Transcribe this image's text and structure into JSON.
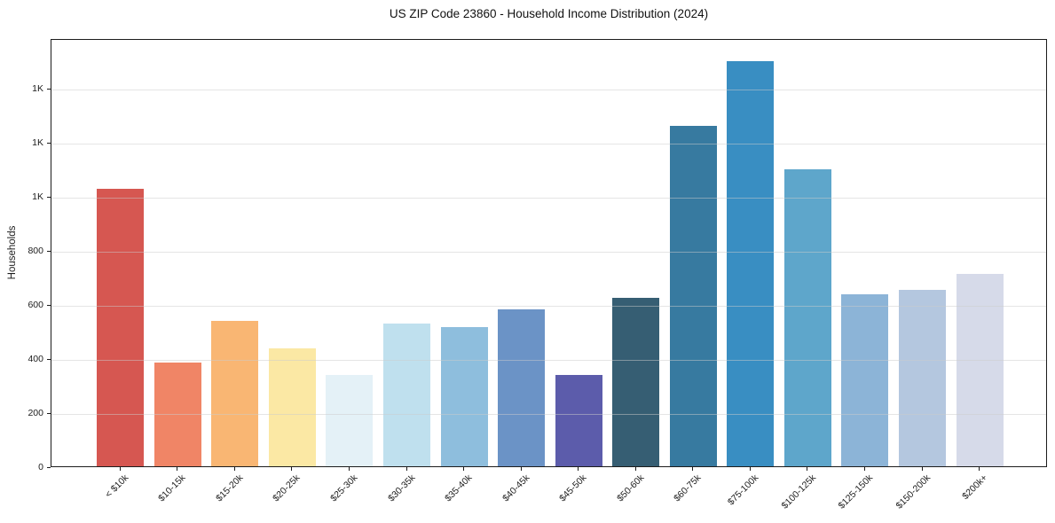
{
  "figure": {
    "background": "#ffffff"
  },
  "chart_data": {
    "type": "bar",
    "title": "US ZIP Code 23860 - Household Income Distribution (2024)",
    "xlabel": "",
    "ylabel": "Households",
    "categories": [
      "< $10k",
      "$10-15k",
      "$15-20k",
      "$20-25k",
      "$25-30k",
      "$30-35k",
      "$35-40k",
      "$40-45k",
      "$45-50k",
      "$50-60k",
      "$60-75k",
      "$75-100k",
      "$100-125k",
      "$125-150k",
      "$150-200k",
      "$200k+"
    ],
    "values": [
      1026,
      385,
      538,
      437,
      338,
      527,
      514,
      580,
      337,
      623,
      1259,
      1498,
      1097,
      635,
      652,
      710
    ],
    "bar_colors": [
      "#d65751",
      "#f08566",
      "#f9b673",
      "#fbe8a4",
      "#e4f1f7",
      "#bfe0ee",
      "#8ebedd",
      "#6b93c6",
      "#5c5cab",
      "#365e73",
      "#377aa0",
      "#398ec2",
      "#5ea6cb",
      "#8cb4d7",
      "#b4c7df",
      "#d6dae9"
    ],
    "ylim": [
      0,
      1583
    ],
    "y_ticks": {
      "values": [
        0,
        200,
        400,
        600,
        800,
        1000,
        1200,
        1400
      ],
      "labels": [
        "0",
        "200",
        "400",
        "600",
        "800",
        "1K",
        "1K",
        "1K"
      ]
    },
    "grid": true,
    "gridline_color": "#e9e9e9",
    "legend": false,
    "spine_color": "#1c1c1c"
  }
}
